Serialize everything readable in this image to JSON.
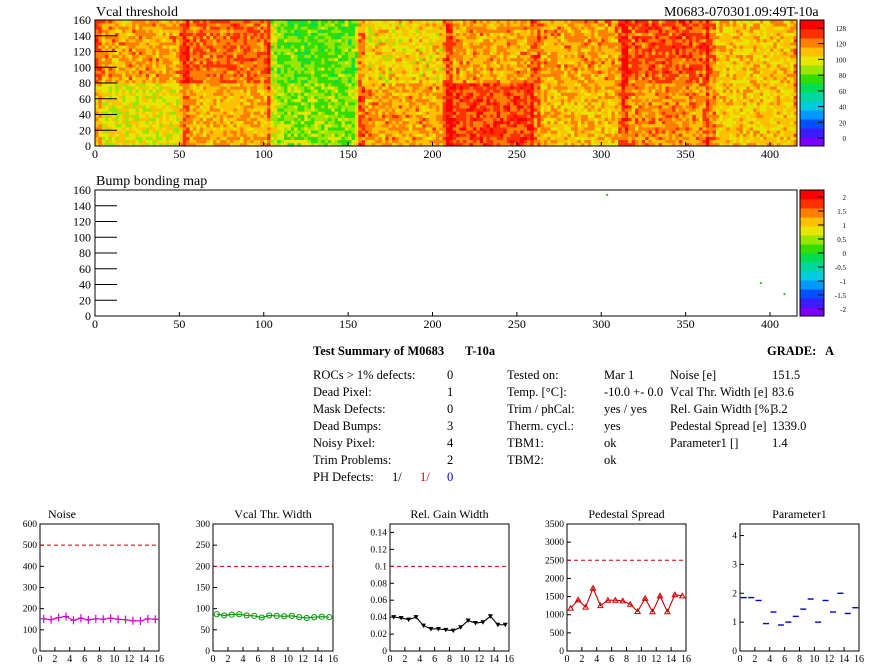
{
  "module_id": "M0683-070301.09:49T-10a",
  "maps": {
    "vcal": {
      "title": "Vcal threshold",
      "palette": [
        "128",
        "120",
        "100",
        "80",
        "60",
        "40",
        "20",
        "0"
      ]
    },
    "bump": {
      "title": "Bump bonding map",
      "palette": [
        "2",
        "1.5",
        "1",
        "0.5",
        "0",
        "-0.5",
        "-1",
        "-1.5",
        "-2"
      ]
    }
  },
  "summary": {
    "title": "Test Summary of M0683",
    "temp_label": "T-10a",
    "grade_label": "GRADE:",
    "grade": "A",
    "defects": [
      {
        "label": "ROCs > 1% defects:",
        "value": "0"
      },
      {
        "label": "Dead Pixel:",
        "value": "1"
      },
      {
        "label": "Mask Defects:",
        "value": "0"
      },
      {
        "label": "Dead Bumps:",
        "value": "3"
      },
      {
        "label": "Noisy Pixel:",
        "value": "4"
      },
      {
        "label": "Trim Problems:",
        "value": "2"
      }
    ],
    "ph_defects": {
      "label": "PH Defects:",
      "v1": "1/",
      "v2": "1/",
      "v3": "0"
    },
    "conditions": [
      {
        "label": "Tested on:",
        "value": "Mar 1"
      },
      {
        "label": "Temp. [°C]:",
        "value": "-10.0 +- 0.0"
      },
      {
        "label": "Trim / phCal:",
        "value": "yes / yes"
      },
      {
        "label": "Therm. cycl.:",
        "value": "yes"
      },
      {
        "label": "TBM1:",
        "value": "ok"
      },
      {
        "label": "TBM2:",
        "value": "ok"
      }
    ],
    "results": [
      {
        "label": "Noise [e]",
        "value": "151.5"
      },
      {
        "label": "Vcal Thr. Width [e]",
        "value": "83.6"
      },
      {
        "label": "Rel. Gain Width [%]",
        "value": "3.2"
      },
      {
        "label": "Pedestal Spread [e]",
        "value": "1339.0"
      },
      {
        "label": "Parameter1 []",
        "value": "1.4"
      }
    ]
  },
  "chart_data": [
    {
      "type": "heatmap",
      "title": "Vcal threshold",
      "xlim": [
        0,
        416
      ],
      "ylim": [
        0,
        160
      ],
      "xticks": [
        "0",
        "50",
        "100",
        "150",
        "200",
        "250",
        "300",
        "350",
        "400"
      ],
      "yticks": [
        "0",
        "20",
        "40",
        "60",
        "80",
        "100",
        "120",
        "140",
        "160"
      ],
      "zlim": [
        0,
        128
      ],
      "roc_grid": {
        "cols": 8,
        "rows": 2,
        "col_width": 52,
        "row_height": 80
      },
      "roc_level_top": [
        100,
        108,
        72,
        92,
        100,
        100,
        110,
        95
      ],
      "roc_level_bottom": [
        88,
        98,
        76,
        100,
        112,
        96,
        102,
        94
      ]
    },
    {
      "type": "heatmap",
      "title": "Bump bonding map",
      "xlim": [
        0,
        416
      ],
      "ylim": [
        0,
        160
      ],
      "xticks": [
        "0",
        "50",
        "100",
        "150",
        "200",
        "250",
        "300",
        "350",
        "400"
      ],
      "yticks": [
        "0",
        "20",
        "40",
        "60",
        "80",
        "100",
        "120",
        "140",
        "160"
      ],
      "zlim": [
        -2,
        2
      ],
      "points": [
        {
          "x": 303,
          "y": 153
        },
        {
          "x": 394,
          "y": 41
        },
        {
          "x": 408,
          "y": 27
        }
      ]
    },
    {
      "type": "line",
      "title": "Noise",
      "x": [
        0,
        1,
        2,
        3,
        4,
        5,
        6,
        7,
        8,
        9,
        10,
        11,
        12,
        13,
        14,
        15
      ],
      "values": [
        152,
        148,
        158,
        163,
        145,
        155,
        147,
        152,
        150,
        155,
        150,
        148,
        143,
        142,
        152,
        150
      ],
      "ylim": [
        0,
        600
      ],
      "yticks": [
        "0",
        "100",
        "200",
        "300",
        "400",
        "500",
        "600"
      ],
      "limit": 500,
      "color": "#cc00cc",
      "marker": "cross"
    },
    {
      "type": "line",
      "title": "Vcal Thr. Width",
      "x": [
        0,
        1,
        2,
        3,
        4,
        5,
        6,
        7,
        8,
        9,
        10,
        11,
        12,
        13,
        14,
        15
      ],
      "values": [
        87,
        84,
        86,
        87,
        84,
        83,
        79,
        84,
        83,
        82,
        83,
        80,
        78,
        80,
        81,
        80
      ],
      "ylim": [
        0,
        300
      ],
      "yticks": [
        "0",
        "50",
        "100",
        "150",
        "200",
        "250",
        "300"
      ],
      "limit": 200,
      "color": "#009900",
      "marker": "circle"
    },
    {
      "type": "line",
      "title": "Rel. Gain Width",
      "x": [
        0,
        1,
        2,
        3,
        4,
        5,
        6,
        7,
        8,
        9,
        10,
        11,
        12,
        13,
        14,
        15
      ],
      "values": [
        0.04,
        0.039,
        0.037,
        0.04,
        0.03,
        0.026,
        0.026,
        0.025,
        0.024,
        0.028,
        0.036,
        0.033,
        0.034,
        0.041,
        0.031,
        0.031
      ],
      "ylim": [
        0,
        0.15
      ],
      "yticks": [
        "0",
        "0.02",
        "0.04",
        "0.06",
        "0.08",
        "0.1",
        "0.12",
        "0.14"
      ],
      "limit": 0.1,
      "color": "#000000",
      "marker": "tri-down"
    },
    {
      "type": "line",
      "title": "Pedestal Spread",
      "x": [
        0,
        1,
        2,
        3,
        4,
        5,
        6,
        7,
        8,
        9,
        10,
        11,
        12,
        13,
        14,
        15
      ],
      "values": [
        1180,
        1410,
        1210,
        1730,
        1250,
        1400,
        1400,
        1380,
        1290,
        1090,
        1450,
        1080,
        1520,
        1080,
        1550,
        1520
      ],
      "ylim": [
        0,
        3500
      ],
      "yticks": [
        "0",
        "500",
        "1000",
        "1500",
        "2000",
        "2500",
        "3000",
        "3500"
      ],
      "limit": 2500,
      "color": "#cc0000",
      "marker": "tri-up"
    },
    {
      "type": "scatter",
      "title": "Parameter1",
      "x": [
        0,
        1,
        2,
        3,
        4,
        5,
        6,
        7,
        8,
        9,
        10,
        11,
        12,
        13,
        14,
        15
      ],
      "values": [
        1.85,
        1.85,
        1.75,
        0.95,
        1.35,
        0.9,
        1.0,
        1.2,
        1.45,
        1.8,
        1.0,
        1.75,
        1.35,
        2.0,
        1.3,
        1.5
      ],
      "ylim": [
        0,
        4.4
      ],
      "yticks": [
        "0",
        "1",
        "2",
        "3",
        "4"
      ],
      "color": "#0000cc",
      "marker": "dash"
    }
  ],
  "xaxis_ticks_small": [
    "0",
    "2",
    "4",
    "6",
    "8",
    "10",
    "12",
    "14",
    "16"
  ]
}
